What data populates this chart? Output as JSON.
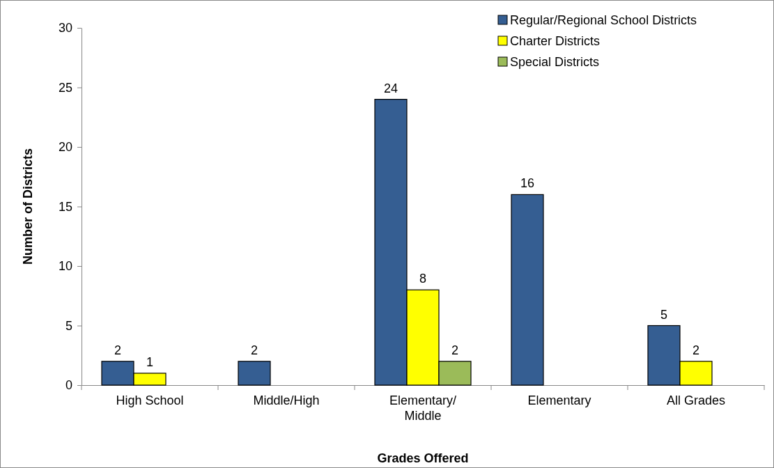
{
  "chart_data": {
    "type": "bar",
    "xlabel": "Grades Offered",
    "ylabel": "Number of Districts",
    "categories": [
      "High School",
      "Middle/High",
      "Elementary/ Middle",
      "Elementary",
      "All Grades"
    ],
    "series": [
      {
        "name": "Regular/Regional School Districts",
        "color": "#355e92",
        "values": [
          2,
          2,
          24,
          16,
          5
        ]
      },
      {
        "name": "Charter Districts",
        "color": "#ffff00",
        "values": [
          1,
          null,
          8,
          null,
          2
        ]
      },
      {
        "name": "Special Districts",
        "color": "#9bbb59",
        "values": [
          null,
          null,
          2,
          null,
          null
        ]
      }
    ],
    "ylim": [
      0,
      30
    ],
    "yticks": [
      0,
      5,
      10,
      15,
      20,
      25,
      30
    ],
    "grid": false,
    "legend": "top right",
    "data_labels": true
  }
}
